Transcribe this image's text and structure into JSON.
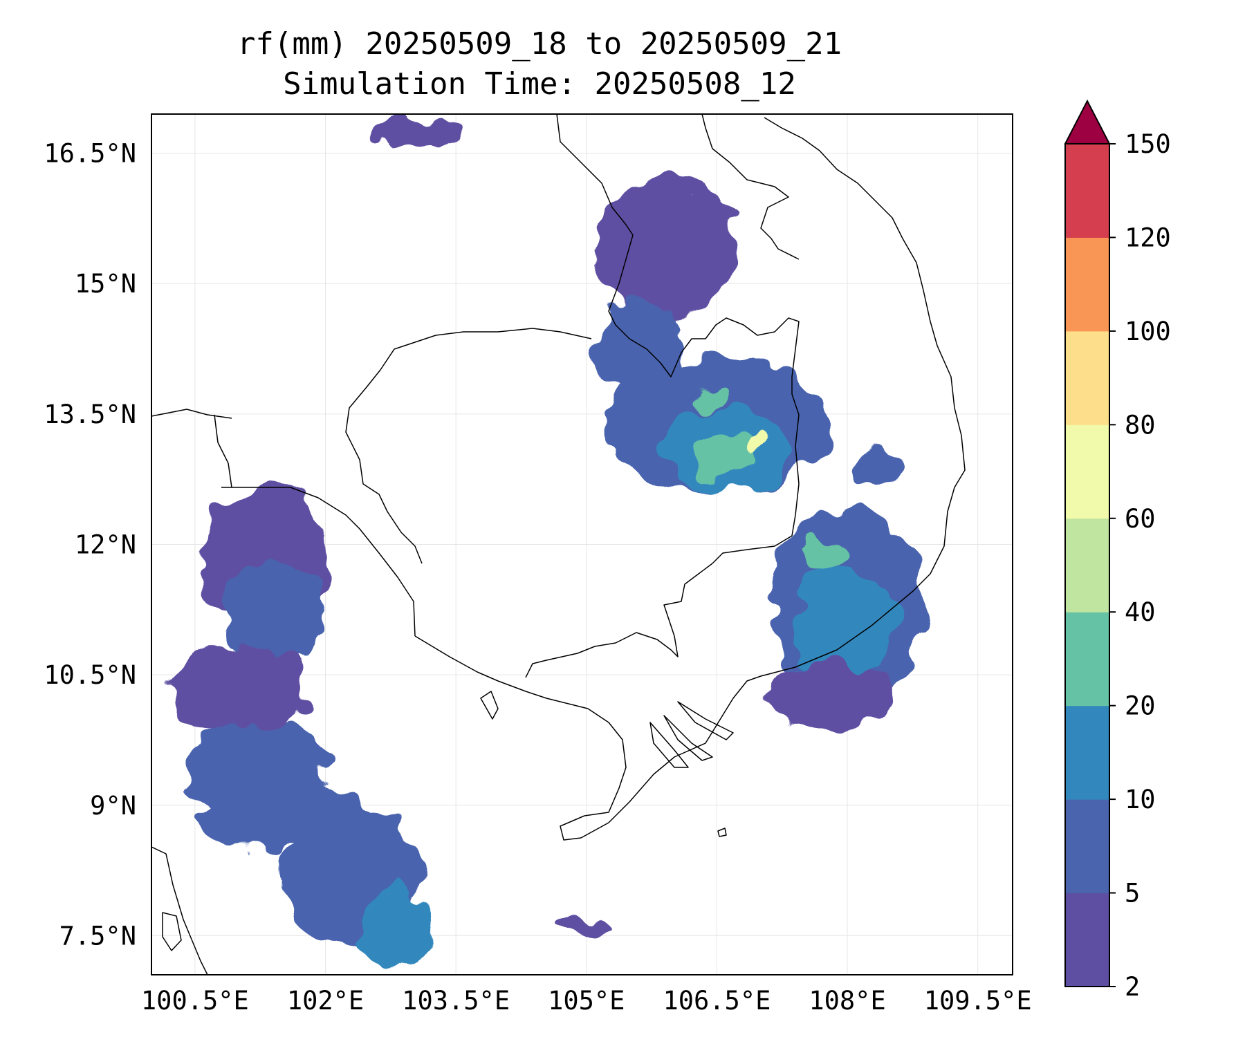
{
  "title_line1": "rf(mm) 20250509_18 to 20250509_21",
  "title_line2": "Simulation Time: 20250508_12",
  "map": {
    "lon_range": [
      100.0,
      109.9
    ],
    "lat_range": [
      7.05,
      16.95
    ],
    "lon_ticks": [
      {
        "value": 100.5,
        "label": "100.5°E"
      },
      {
        "value": 102.0,
        "label": "102°E"
      },
      {
        "value": 103.5,
        "label": "103.5°E"
      },
      {
        "value": 105.0,
        "label": "105°E"
      },
      {
        "value": 106.5,
        "label": "106.5°E"
      },
      {
        "value": 108.0,
        "label": "108°E"
      },
      {
        "value": 109.5,
        "label": "109.5°E"
      }
    ],
    "lat_ticks": [
      {
        "value": 16.5,
        "label": "16.5°N"
      },
      {
        "value": 15.0,
        "label": "15°N"
      },
      {
        "value": 13.5,
        "label": "13.5°N"
      },
      {
        "value": 12.0,
        "label": "12°N"
      },
      {
        "value": 10.5,
        "label": "10.5°N"
      },
      {
        "value": 9.0,
        "label": "9°N"
      },
      {
        "value": 7.5,
        "label": "7.5°N"
      }
    ],
    "grid": true,
    "coastline_color": "#000000",
    "rain_cells": [
      {
        "lon": 101.3,
        "lat": 11.8,
        "rx": 0.75,
        "ry": 0.9,
        "level": 0
      },
      {
        "lon": 101.4,
        "lat": 11.2,
        "rx": 0.6,
        "ry": 0.6,
        "level": 1
      },
      {
        "lon": 101.0,
        "lat": 10.3,
        "rx": 0.8,
        "ry": 0.55,
        "level": 0
      },
      {
        "lon": 101.2,
        "lat": 9.4,
        "rx": 0.8,
        "ry": 0.55,
        "level": 1
      },
      {
        "lon": 101.5,
        "lat": 8.9,
        "rx": 1.0,
        "ry": 0.4,
        "level": 1
      },
      {
        "lon": 102.3,
        "lat": 8.2,
        "rx": 0.8,
        "ry": 0.8,
        "level": 1
      },
      {
        "lon": 102.8,
        "lat": 7.6,
        "rx": 0.45,
        "ry": 0.45,
        "level": 2
      },
      {
        "lon": 105.9,
        "lat": 15.4,
        "rx": 0.8,
        "ry": 0.8,
        "level": 0
      },
      {
        "lon": 105.6,
        "lat": 14.2,
        "rx": 0.5,
        "ry": 0.6,
        "level": 1
      },
      {
        "lon": 106.5,
        "lat": 13.4,
        "rx": 1.3,
        "ry": 0.75,
        "level": 1
      },
      {
        "lon": 106.6,
        "lat": 13.1,
        "rx": 0.75,
        "ry": 0.45,
        "level": 2
      },
      {
        "lon": 106.6,
        "lat": 13.05,
        "rx": 0.4,
        "ry": 0.25,
        "level": 3
      },
      {
        "lon": 106.95,
        "lat": 13.15,
        "rx": 0.15,
        "ry": 0.1,
        "level": 5
      },
      {
        "lon": 106.4,
        "lat": 13.7,
        "rx": 0.2,
        "ry": 0.15,
        "level": 3
      },
      {
        "lon": 108.0,
        "lat": 11.3,
        "rx": 0.9,
        "ry": 1.1,
        "level": 1
      },
      {
        "lon": 107.95,
        "lat": 11.1,
        "rx": 0.6,
        "ry": 0.65,
        "level": 2
      },
      {
        "lon": 107.7,
        "lat": 11.9,
        "rx": 0.25,
        "ry": 0.2,
        "level": 3
      },
      {
        "lon": 107.8,
        "lat": 10.25,
        "rx": 0.7,
        "ry": 0.4,
        "level": 0
      },
      {
        "lon": 108.35,
        "lat": 12.9,
        "rx": 0.3,
        "ry": 0.25,
        "level": 1
      },
      {
        "lon": 103.0,
        "lat": 16.75,
        "rx": 0.5,
        "ry": 0.15,
        "level": 0
      },
      {
        "lon": 105.0,
        "lat": 7.6,
        "rx": 0.35,
        "ry": 0.12,
        "level": 0
      }
    ]
  },
  "colorbar": {
    "extend_color": "#9e0142",
    "bounds": [
      2,
      5,
      10,
      20,
      40,
      60,
      80,
      100,
      120,
      150
    ],
    "labels": [
      "2",
      "5",
      "10",
      "20",
      "40",
      "60",
      "80",
      "100",
      "120",
      "150"
    ],
    "colors": [
      "#5e4fa2",
      "#4a64ae",
      "#3288bd",
      "#66c2a5",
      "#bfe5a0",
      "#f1f9aa",
      "#fddf8b",
      "#f99555",
      "#d53e4f"
    ]
  }
}
